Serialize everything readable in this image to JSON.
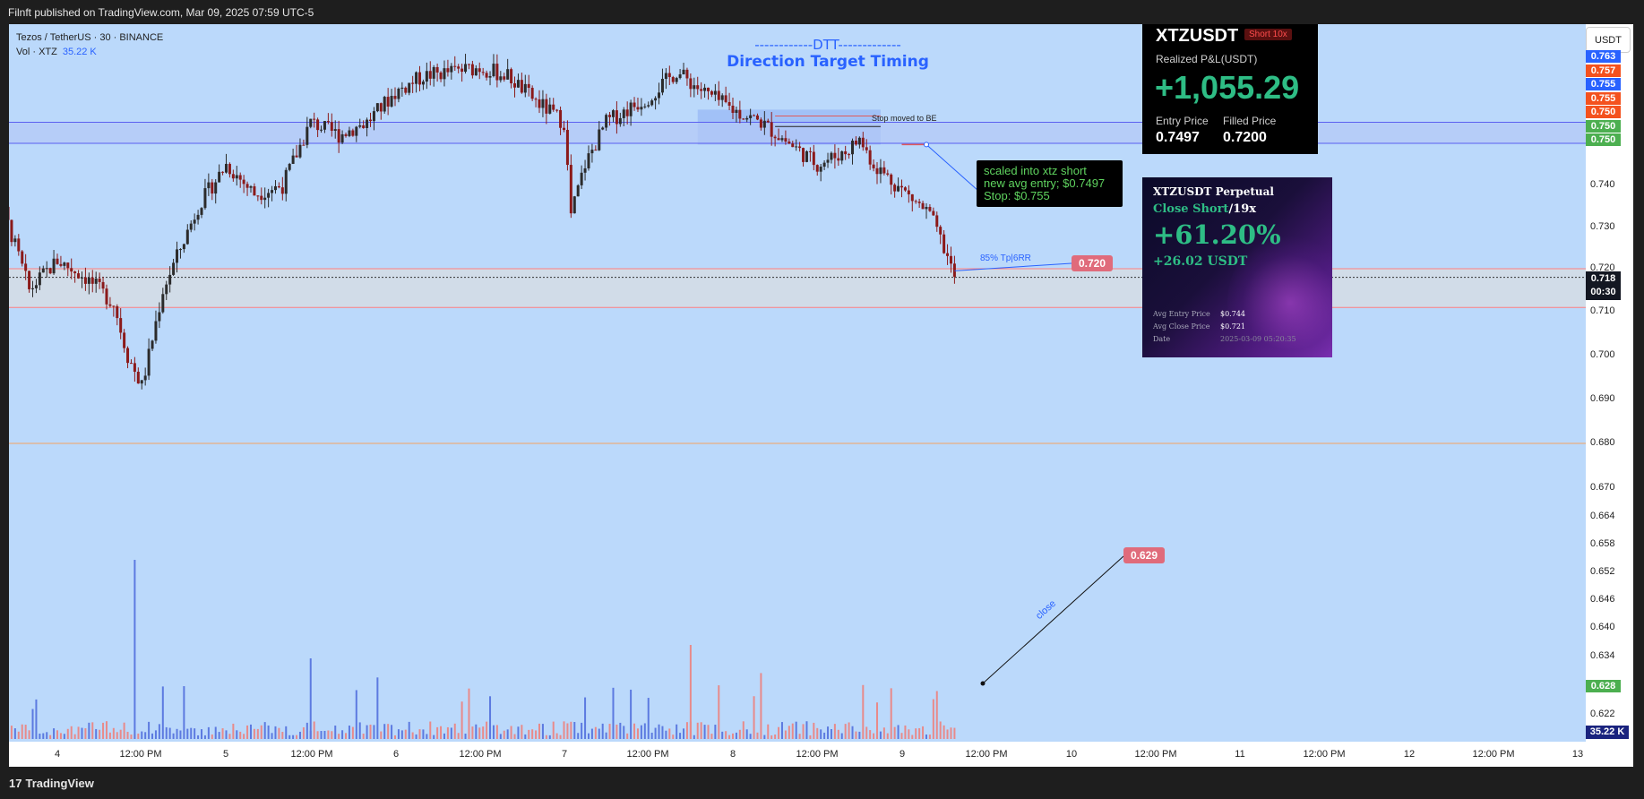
{
  "header": {
    "published": "Filnft published on TradingView.com, Mar 09, 2025 07:59 UTC-5"
  },
  "footer": {
    "brand": "TradingView",
    "logo_mark": "17"
  },
  "legend": {
    "symbol_line": "Tezos / TetherUS · 30 · BINANCE",
    "volume_label": "Vol · XTZ",
    "volume_value": "35.22 K"
  },
  "annotations": {
    "dtt_line1": "------------DTT-------------",
    "dtt_line2": "Direction Target Timing",
    "stop_be": "Stop moved to BE",
    "note_line1": "scaled into xtz short",
    "note_line2": "new avg entry; $0.7497",
    "note_line3": "Stop: $0.755",
    "tp": "85% Tp|6RR",
    "close": "close",
    "pill_720": "0.720",
    "pill_629": "0.629"
  },
  "pnl_card": {
    "symbol": "XTZUSDT",
    "badge": "Short 10x",
    "label": "Realized P&L(USDT)",
    "value": "+1,055.29",
    "entry_label": "Entry Price",
    "entry_value": "0.7497",
    "filled_label": "Filled Price",
    "filled_value": "0.7200"
  },
  "perp_card": {
    "title": "XTZUSDT Perpetual",
    "action": "Close Short",
    "leverage": "/19x",
    "pct": "+61.20%",
    "usdt": "+26.02 USDT",
    "avg_entry_label": "Avg Entry Price",
    "avg_entry_value": "$0.744",
    "avg_close_label": "Avg Close Price",
    "avg_close_value": "$0.721",
    "date_label": "Date",
    "date_value": "2025-03-09 05:20:35"
  },
  "right_axis": {
    "currency_button": "USDT",
    "ticks": [
      "0.740",
      "0.730",
      "0.720",
      "0.710",
      "0.700",
      "0.690",
      "0.680",
      "0.670",
      "0.664",
      "0.658",
      "0.652",
      "0.646",
      "0.640",
      "0.634",
      "0.628",
      "0.622"
    ],
    "tags": [
      {
        "text": "0.763",
        "color": "#2962ff"
      },
      {
        "text": "0.757",
        "color": "#f4511e"
      },
      {
        "text": "0.755",
        "color": "#2962ff"
      },
      {
        "text": "0.755",
        "color": "#f4511e"
      },
      {
        "text": "0.750",
        "color": "#f4511e"
      },
      {
        "text": "0.750",
        "color": "#4caf50"
      },
      {
        "text": "0.750",
        "color": "#4caf50"
      }
    ],
    "current_price": "0.718",
    "countdown": "00:30",
    "tag_628": "0.628",
    "volume_tag": "35.22 K"
  },
  "x_axis": {
    "labels": [
      "4",
      "12:00 PM",
      "5",
      "12:00 PM",
      "6",
      "12:00 PM",
      "7",
      "12:00 PM",
      "8",
      "12:00 PM",
      "9",
      "12:00 PM",
      "10",
      "12:00 PM",
      "11",
      "12:00 PM",
      "12",
      "12:00 PM",
      "13"
    ]
  },
  "colors": {
    "background": "#bbd9fb",
    "up": "#2b2b2b",
    "down": "#8b1a1a",
    "vol_up": "#5c7ae0",
    "vol_down": "#e88a8a",
    "target_zone": "#a8d3d9",
    "entry_zone": "#9cbcf6"
  },
  "chart_data": {
    "type": "candlestick",
    "symbol": "Tezos / TetherUS",
    "timeframe": "30",
    "exchange": "BINANCE",
    "y_scale": "log",
    "ylim": [
      0.618,
      0.768
    ],
    "x_range": [
      "Mar 3 2025",
      "Mar 13 2025"
    ],
    "close_path": [
      [
        "Mar 3 12:00",
        0.745
      ],
      [
        "Mar 3 16:00",
        0.736
      ],
      [
        "Mar 3 20:00",
        0.715
      ],
      [
        "Mar 4 00:00",
        0.722
      ],
      [
        "Mar 4 04:00",
        0.718
      ],
      [
        "Mar 4 08:00",
        0.712
      ],
      [
        "Mar 4 10:00",
        0.7
      ],
      [
        "Mar 4 12:00",
        0.693
      ],
      [
        "Mar 4 13:00",
        0.7
      ],
      [
        "Mar 4 15:00",
        0.715
      ],
      [
        "Mar 4 20:00",
        0.735
      ],
      [
        "Mar 5 00:00",
        0.745
      ],
      [
        "Mar 5 04:00",
        0.738
      ],
      [
        "Mar 5 08:00",
        0.74
      ],
      [
        "Mar 5 12:00",
        0.755
      ],
      [
        "Mar 5 16:00",
        0.752
      ],
      [
        "Mar 5 20:00",
        0.755
      ],
      [
        "Mar 6 00:00",
        0.762
      ],
      [
        "Mar 6 04:00",
        0.766
      ],
      [
        "Mar 6 12:00",
        0.768
      ],
      [
        "Mar 6 16:00",
        0.766
      ],
      [
        "Mar 6 20:00",
        0.76
      ],
      [
        "Mar 7 00:00",
        0.755
      ],
      [
        "Mar 7 01:00",
        0.733
      ],
      [
        "Mar 7 03:00",
        0.745
      ],
      [
        "Mar 7 06:00",
        0.755
      ],
      [
        "Mar 7 12:00",
        0.761
      ],
      [
        "Mar 7 16:00",
        0.767
      ],
      [
        "Mar 7 20:00",
        0.762
      ],
      [
        "Mar 8 00:00",
        0.758
      ],
      [
        "Mar 8 04:00",
        0.755
      ],
      [
        "Mar 8 08:00",
        0.75
      ],
      [
        "Mar 8 12:00",
        0.745
      ],
      [
        "Mar 8 16:00",
        0.748
      ],
      [
        "Mar 8 18:00",
        0.751
      ],
      [
        "Mar 8 20:00",
        0.745
      ],
      [
        "Mar 9 00:00",
        0.739
      ],
      [
        "Mar 9 04:00",
        0.733
      ],
      [
        "Mar 9 06:00",
        0.725
      ],
      [
        "Mar 9 07:30",
        0.718
      ]
    ],
    "horizontal_levels": [
      {
        "price": 0.755,
        "color": "#5a5ff0"
      },
      {
        "price": 0.75,
        "color": "#5a5ff0"
      },
      {
        "price": 0.72,
        "color": "#ff7f7f"
      },
      {
        "price": 0.711,
        "color": "#ff7f7f"
      },
      {
        "price": 0.68,
        "color": "#f4a460"
      }
    ],
    "zones": [
      {
        "name": "stop zone",
        "from": 0.7497,
        "to": 0.758,
        "x_from": "Mar 7 19:00",
        "x_to": "Mar 8 21:00"
      },
      {
        "name": "target zone",
        "from": 0.628,
        "to": 0.7497,
        "x_from": "Mar 8 15:00",
        "x_to": "Mar 9 20:00"
      }
    ],
    "pricing_markers": [
      {
        "label": "0.720",
        "price": 0.72,
        "x": "Mar 9 08:00"
      },
      {
        "label": "0.629",
        "price": 0.629,
        "x": "Mar 9 23:00"
      }
    ],
    "annotation_points": [
      {
        "text": "scaled into xtz short",
        "price": 0.7497,
        "x": "Mar 9 00:30"
      },
      {
        "text": "close",
        "price": 0.628,
        "x": "Mar 9 20:00"
      }
    ],
    "volume": {
      "last": "35.22 K",
      "peak_bars": [
        "Mar 4 11:00",
        "Mar 7 18:00",
        "Mar 5 12:00"
      ]
    }
  }
}
